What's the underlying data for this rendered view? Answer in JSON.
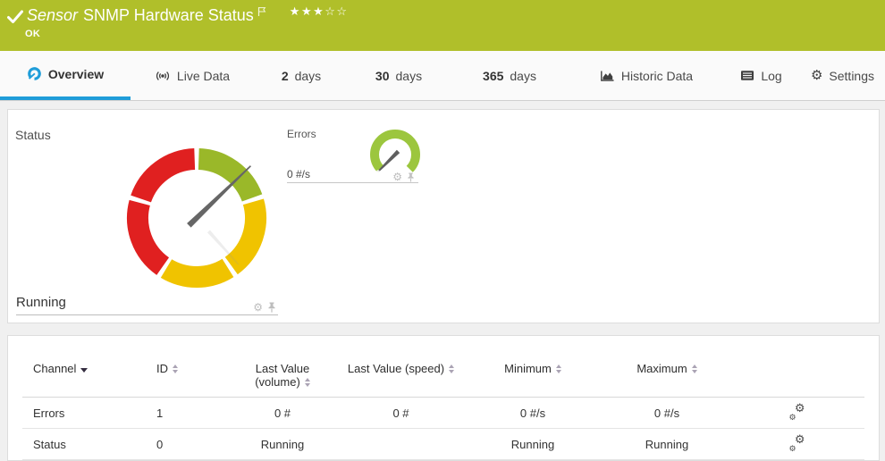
{
  "colors": {
    "header_green": "#b0bf2a",
    "tab_accent_blue": "#1f9dd9",
    "gauge_green": "#9ab829",
    "gauge_yellow": "#f0c300",
    "gauge_red": "#e02020",
    "errors_gauge_green": "#9cc63e",
    "needle_gray": "#666666"
  },
  "header": {
    "kind_label": "Sensor",
    "title": "SNMP Hardware Status",
    "status_text": "OK",
    "priority": {
      "filled": 3,
      "total": 5
    }
  },
  "tabs": [
    {
      "id": "overview",
      "label": "Overview",
      "icon": "gauge-icon",
      "active": true
    },
    {
      "id": "live-data",
      "label": "Live Data",
      "icon": "broadcast-icon",
      "active": false
    },
    {
      "id": "2-days",
      "label": "days",
      "number": "2",
      "active": false
    },
    {
      "id": "30-days",
      "label": "days",
      "number": "30",
      "active": false
    },
    {
      "id": "365-days",
      "label": "days",
      "number": "365",
      "active": false
    },
    {
      "id": "historic-data",
      "label": "Historic Data",
      "icon": "chart-icon",
      "active": false
    },
    {
      "id": "log",
      "label": "Log",
      "icon": "log-icon",
      "active": false
    },
    {
      "id": "settings",
      "label": "Settings",
      "icon": "gear-icon",
      "active": false
    }
  ],
  "overview": {
    "status_gauge": {
      "label": "Status",
      "value": "Running",
      "needle_angle": 46,
      "segments": [
        {
          "from": 2,
          "to": 70,
          "color": "#9ab829"
        },
        {
          "from": 74,
          "to": 144,
          "color": "#f0c300"
        },
        {
          "from": 148,
          "to": 211,
          "color": "#f0c300"
        },
        {
          "from": 215,
          "to": 285,
          "color": "#e02020"
        },
        {
          "from": 289,
          "to": 358,
          "color": "#e02020"
        }
      ]
    },
    "errors_gauge": {
      "label": "Errors",
      "value": "0 #/s",
      "needle_angle": 225,
      "arc_from": 225,
      "arc_to": 495,
      "color": "#9cc63e"
    }
  },
  "table": {
    "columns": [
      {
        "label": "Channel",
        "align": "left",
        "sort": "sorted-desc"
      },
      {
        "label": "ID",
        "align": "left",
        "sort": "sortable"
      },
      {
        "label": "Last Value",
        "label2": "(volume)",
        "align": "center",
        "sort": "sortable"
      },
      {
        "label": "Last Value (speed)",
        "align": "center",
        "sort": "sortable"
      },
      {
        "label": "Minimum",
        "align": "center",
        "sort": "sortable"
      },
      {
        "label": "Maximum",
        "align": "center",
        "sort": "sortable"
      },
      {
        "label": "",
        "align": "center",
        "sort": "none"
      }
    ],
    "rows": [
      {
        "id": "errors",
        "cells": [
          "Errors",
          "1",
          "0 #",
          "0 #",
          "0 #/s",
          "0 #/s"
        ]
      },
      {
        "id": "status",
        "cells": [
          "Status",
          "0",
          "Running",
          "",
          "Running",
          "Running"
        ]
      }
    ]
  }
}
